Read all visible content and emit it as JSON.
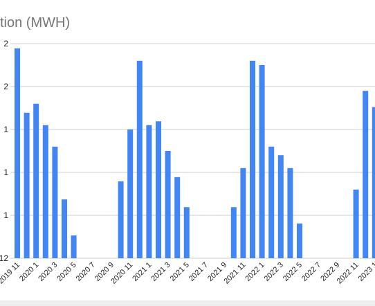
{
  "chart_data": {
    "type": "bar",
    "title": "tion (MWH)",
    "categories": [
      "2019 11",
      null,
      "2020 1",
      null,
      "2020 3",
      null,
      "2020 5",
      null,
      "2020 7",
      null,
      "2020 9",
      null,
      "2020 11",
      null,
      "2021 1",
      null,
      "2021 3",
      null,
      "2021 5",
      null,
      "2021 7",
      null,
      "2021 9",
      null,
      "2021 11",
      null,
      "2022 1",
      null,
      "2022 3",
      null,
      "2022 5",
      null,
      "2022 7",
      null,
      "2022 9",
      null,
      "2022 11",
      null,
      "2023 1"
    ],
    "values": [
      4.89,
      3.39,
      3.6,
      3.1,
      2.6,
      1.37,
      0.53,
      null,
      null,
      null,
      null,
      1.79,
      3.0,
      4.6,
      3.1,
      3.19,
      2.5,
      1.89,
      1.19,
      null,
      null,
      null,
      null,
      1.19,
      2.1,
      4.6,
      4.5,
      2.6,
      2.4,
      2.1,
      0.81,
      null,
      null,
      null,
      null,
      null,
      1.6,
      3.9,
      3.52
    ],
    "color": "#4285f4",
    "ylim": [
      0,
      5
    ],
    "yticks": [
      {
        "value": 0,
        "label": "12"
      },
      {
        "value": 1,
        "label": "1"
      },
      {
        "value": 2,
        "label": "1"
      },
      {
        "value": 3,
        "label": "1"
      },
      {
        "value": 4,
        "label": "2"
      },
      {
        "value": 5,
        "label": "2"
      }
    ],
    "grid": true
  }
}
